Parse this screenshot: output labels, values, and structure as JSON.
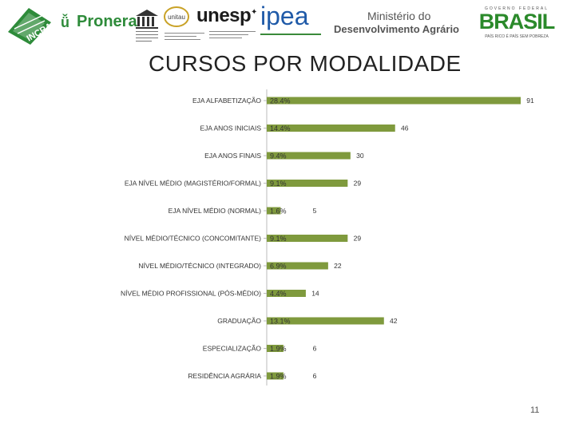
{
  "slide": {
    "title": "CURSOS POR MODALIDADE",
    "page_number": "11"
  },
  "logos": {
    "incra": "INCRA",
    "pronera": "Pronera",
    "unitau": "unitau",
    "unesp": "unesp",
    "ipea": "ipea",
    "ministerio_line1": "Ministério do",
    "ministerio_line2": "Desenvolvimento Agrário",
    "brasil_top": "GOVERNO FEDERAL",
    "brasil": "BRASIL",
    "brasil_slogan": "PAÍS RICO É PAÍS SEM POBREZA"
  },
  "chart_data": {
    "type": "bar",
    "orientation": "horizontal",
    "title": "CURSOS POR MODALIDADE",
    "categories": [
      "EJA ALFABETIZAÇÃO",
      "EJA ANOS INICIAIS",
      "EJA ANOS FINAIS",
      "EJA NÍVEL MÉDIO (MAGISTÉRIO/FORMAL)",
      "EJA NÍVEL MÉDIO (NORMAL)",
      "NÍVEL MÉDIO/TÉCNICO (CONCOMITANTE)",
      "NÍVEL MÉDIO/TÉCNICO (INTEGRADO)",
      "NÍVEL MÉDIO PROFISSIONAL (PÓS-MÉDIO)",
      "GRADUAÇÃO",
      "ESPECIALIZAÇÃO",
      "RESIDÊNCIA AGRÁRIA"
    ],
    "values": [
      91,
      46,
      30,
      29,
      5,
      29,
      22,
      14,
      42,
      6,
      6
    ],
    "value_labels": [
      "91",
      "46",
      "30",
      "29",
      "5",
      "29",
      "22",
      "14",
      "42",
      "6",
      "6"
    ],
    "percent_labels": [
      "28.4%",
      "14.4%",
      "9.4%",
      "9.1%",
      "1.6%",
      "9.1%",
      "6.9%",
      "4.4%",
      "13.1%",
      "1.9%",
      "1.9%"
    ],
    "xlim": [
      0,
      91
    ],
    "bar_color": "#7f9a3d",
    "grid": false,
    "legend": "none"
  }
}
